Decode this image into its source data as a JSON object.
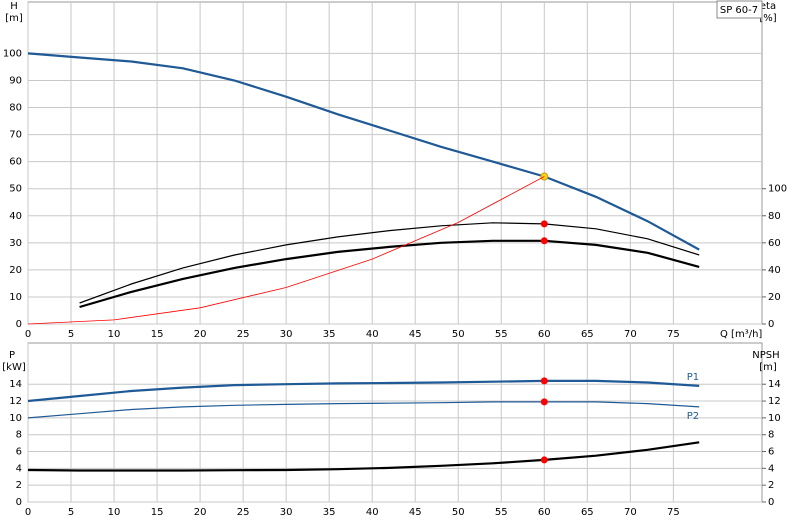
{
  "chart_data": [
    {
      "type": "line",
      "title": "SP 60-7",
      "xlabel": "Q [m³/h]",
      "ylabel": "H",
      "yunit": "[m]",
      "y2label": "eta",
      "y2unit": "[%]",
      "xlim": [
        0,
        85.3
      ],
      "xticks": [
        0,
        5,
        10,
        15,
        20,
        25,
        30,
        35,
        40,
        45,
        50,
        55,
        60,
        65,
        70,
        75
      ],
      "ylim": [
        0,
        119
      ],
      "yticks": [
        0,
        10,
        20,
        30,
        40,
        50,
        60,
        70,
        80,
        90,
        100
      ],
      "y2lim": [
        0,
        238
      ],
      "y2ticks": [
        0,
        20,
        40,
        60,
        80,
        100
      ],
      "grid": true,
      "duty_x": 60,
      "series": [
        {
          "color": "#1f5a96",
          "weight": "bold",
          "marker": "#ffd21f",
          "x": [
            0,
            6,
            12,
            18,
            24,
            30,
            36,
            42,
            48,
            54,
            60,
            66,
            72,
            78
          ],
          "values": [
            100,
            98.5,
            97,
            94.5,
            90,
            84,
            77.5,
            71.5,
            65.5,
            60,
            54.5,
            47,
            38,
            27.5
          ]
        },
        {
          "color": "#000000",
          "weight": "normal",
          "marker": "#ff0000",
          "axis": "y2",
          "x": [
            6,
            12,
            18,
            24,
            30,
            36,
            42,
            48,
            54,
            60,
            66,
            72,
            78
          ],
          "values": [
            15.5,
            29.6,
            41.5,
            51,
            58.5,
            64.4,
            69,
            72.6,
            74.8,
            74,
            70.4,
            63,
            51
          ]
        },
        {
          "color": "#000000",
          "weight": "bold",
          "marker": "#ff0000",
          "axis": "y2",
          "x": [
            6,
            12,
            18,
            24,
            30,
            36,
            42,
            48,
            54,
            60,
            66,
            72,
            78
          ],
          "values": [
            12.6,
            23.7,
            33.3,
            41.5,
            48,
            53.3,
            57,
            60,
            61.5,
            61.5,
            58.5,
            52.6,
            42.2
          ]
        },
        {
          "color": "#ff0000",
          "weight": "thin",
          "x": [
            0,
            10,
            20,
            30,
            40,
            50,
            60
          ],
          "values": [
            0,
            1.5,
            6,
            13.5,
            24,
            37.5,
            54.5
          ]
        }
      ]
    },
    {
      "type": "line",
      "ylabel": "P",
      "yunit": "[kW]",
      "y2label": "NPSH",
      "y2unit": "[m]",
      "xlim": [
        0,
        85.3
      ],
      "xticks": [
        0,
        5,
        10,
        15,
        20,
        25,
        30,
        35,
        40,
        45,
        50,
        55,
        60,
        65,
        70,
        75
      ],
      "ylim": [
        0,
        18.9
      ],
      "yticks": [
        0,
        2,
        4,
        6,
        8,
        10,
        12,
        14
      ],
      "y2lim": [
        0,
        18.9
      ],
      "y2ticks": [
        0,
        2,
        4,
        6,
        8,
        10,
        12,
        14
      ],
      "grid": true,
      "duty_x": 60,
      "series": [
        {
          "name": "P1",
          "color": "#1f5a96",
          "weight": "bold",
          "marker": "#ff0000",
          "x": [
            0,
            6,
            12,
            18,
            24,
            30,
            36,
            42,
            48,
            54,
            60,
            66,
            72,
            78
          ],
          "values": [
            12,
            12.6,
            13.2,
            13.6,
            13.9,
            14,
            14.1,
            14.15,
            14.2,
            14.3,
            14.4,
            14.4,
            14.2,
            13.8
          ]
        },
        {
          "name": "P2",
          "color": "#1f5a96",
          "weight": "normal",
          "marker": "#ff0000",
          "x": [
            0,
            6,
            12,
            18,
            24,
            30,
            36,
            42,
            48,
            54,
            60,
            66,
            72,
            78
          ],
          "values": [
            10,
            10.5,
            11,
            11.3,
            11.5,
            11.6,
            11.7,
            11.75,
            11.8,
            11.9,
            11.9,
            11.9,
            11.7,
            11.3
          ]
        },
        {
          "color": "#000000",
          "weight": "bold",
          "marker": "#ff0000",
          "axis": "y2",
          "x": [
            0,
            6,
            12,
            18,
            24,
            30,
            36,
            42,
            48,
            54,
            60,
            66,
            72,
            78
          ],
          "values": [
            3.8,
            3.75,
            3.75,
            3.75,
            3.78,
            3.8,
            3.9,
            4.05,
            4.3,
            4.6,
            5,
            5.5,
            6.2,
            7.1
          ]
        }
      ]
    }
  ]
}
